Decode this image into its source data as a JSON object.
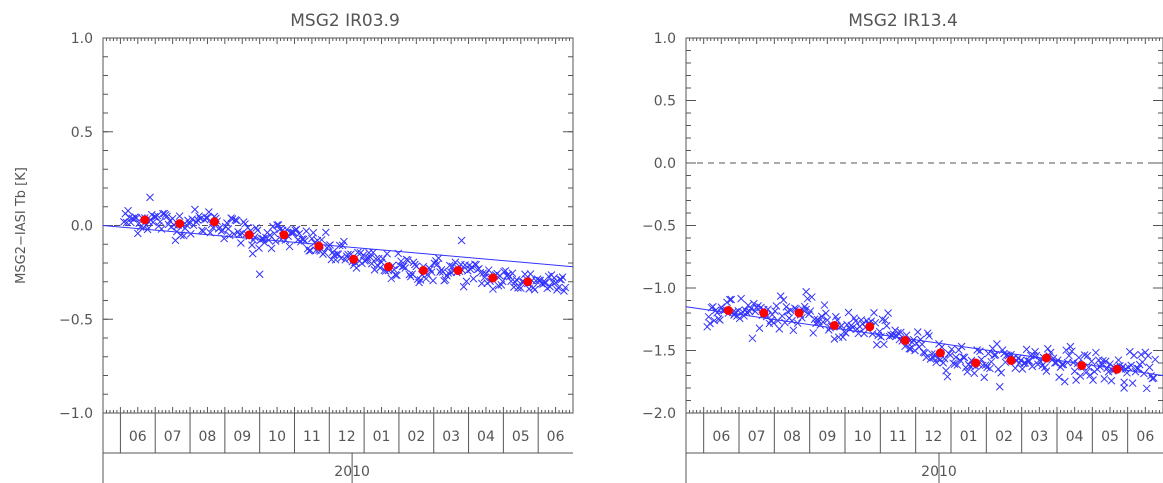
{
  "style": {
    "axis_color": "#555555",
    "point_color": "#3333ff",
    "trend_color": "#3333ff",
    "monthly_mean_color": "#ff0000",
    "zero_line_color": "#555555"
  },
  "chart_data": [
    {
      "type": "scatter",
      "title": "MSG2  IR03.9",
      "ylabel": "MSG2−IASI Tb [K]",
      "ylim": [
        -1.0,
        1.0
      ],
      "yticks": [
        "1.0",
        "0.5",
        "0.0",
        "−0.5",
        "−1.0"
      ],
      "ytick_values": [
        1.0,
        0.5,
        0.0,
        -0.5,
        -1.0
      ],
      "xlim": [
        0,
        13.5
      ],
      "zero_line": 0.0,
      "month_labels": [
        "06",
        "07",
        "08",
        "09",
        "10",
        "11",
        "12",
        "01",
        "02",
        "03",
        "04",
        "05",
        "06"
      ],
      "year_label": "2010",
      "year_divider_x": 7.0,
      "trend": {
        "x": [
          0,
          13.5
        ],
        "y": [
          0.0,
          -0.22
        ]
      },
      "monthly_means": {
        "x": [
          1.2,
          2.2,
          3.2,
          4.2,
          5.2,
          6.2,
          7.2,
          8.2,
          9.2,
          10.2,
          11.2,
          12.2
        ],
        "y": [
          0.03,
          0.01,
          0.02,
          -0.05,
          -0.05,
          -0.11,
          -0.18,
          -0.22,
          -0.24,
          -0.24,
          -0.28,
          -0.3
        ]
      },
      "scatter_outliers": {
        "x": [
          1.35,
          4.3,
          4.5,
          10.3
        ],
        "y": [
          0.15,
          -0.15,
          -0.26,
          -0.08
        ]
      },
      "scatter_spread": 0.035
    },
    {
      "type": "scatter",
      "title": "MSG2  IR13.4",
      "ylabel": "",
      "ylim": [
        -2.0,
        1.0
      ],
      "yticks": [
        "1.0",
        "0.5",
        "0.0",
        "−0.5",
        "−1.0",
        "−1.5",
        "−2.0"
      ],
      "ytick_values": [
        1.0,
        0.5,
        0.0,
        -0.5,
        -1.0,
        -1.5,
        -2.0
      ],
      "xlim": [
        0,
        13.5
      ],
      "zero_line": 0.0,
      "month_labels": [
        "06",
        "07",
        "08",
        "09",
        "10",
        "11",
        "12",
        "01",
        "02",
        "03",
        "04",
        "05",
        "06"
      ],
      "year_label": "2010",
      "year_divider_x": 7.0,
      "trend": {
        "x": [
          0,
          13.5
        ],
        "y": [
          -1.15,
          -1.7
        ]
      },
      "monthly_means": {
        "x": [
          1.2,
          2.2,
          3.2,
          4.2,
          5.2,
          6.2,
          7.2,
          8.2,
          9.2,
          10.2,
          11.2,
          12.2
        ],
        "y": [
          -1.18,
          -1.2,
          -1.2,
          -1.3,
          -1.31,
          -1.42,
          -1.52,
          -1.6,
          -1.58,
          -1.56,
          -1.62,
          -1.65
        ]
      },
      "scatter_outliers": {
        "x": [
          3.4,
          12.4
        ],
        "y": [
          -1.03,
          -1.8
        ]
      },
      "scatter_spread": 0.06
    }
  ]
}
